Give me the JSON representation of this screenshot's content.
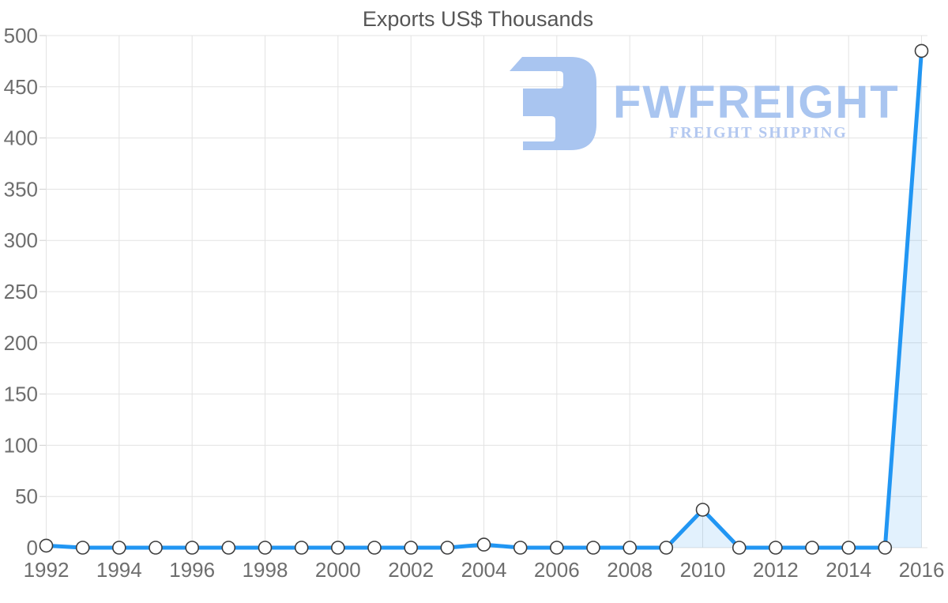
{
  "chart_data": {
    "type": "area",
    "title": "Exports US$ Thousands",
    "series_name": "Exports US$ Thousands",
    "x": [
      1992,
      1993,
      1994,
      1995,
      1996,
      1997,
      1998,
      1999,
      2000,
      2001,
      2002,
      2003,
      2004,
      2005,
      2006,
      2007,
      2008,
      2009,
      2010,
      2011,
      2012,
      2013,
      2014,
      2015,
      2016
    ],
    "values": [
      2,
      0,
      0,
      0,
      0,
      0,
      0,
      0,
      0,
      0,
      0,
      0,
      3,
      0,
      0,
      0,
      0,
      0,
      37,
      0,
      0,
      0,
      0,
      0,
      485
    ],
    "xticks": [
      1992,
      1994,
      1996,
      1998,
      2000,
      2002,
      2004,
      2006,
      2008,
      2010,
      2012,
      2014,
      2016
    ],
    "yticks": [
      0,
      50,
      100,
      150,
      200,
      250,
      300,
      350,
      400,
      450,
      500
    ],
    "xlim": [
      1992,
      2016
    ],
    "ylim": [
      0,
      500
    ],
    "xlabel": "",
    "ylabel": "",
    "grid": true,
    "legend": false,
    "marker": "circle"
  },
  "watermark": {
    "name": "FWFREIGHT",
    "tagline": "FREIGHT SHIPPING",
    "logo_icon": "fwfreight-mark"
  },
  "colors": {
    "line": "#2196f3",
    "area_fill": "#2196f3",
    "area_opacity": "0.13",
    "marker_fill": "#ffffff",
    "marker_stroke": "#3d3d3d",
    "grid": "#e3e3e3",
    "tick": "#cfcfcf",
    "axis_label": "#6e6e6e",
    "title": "#565656",
    "watermark_mark": "#a9c5f0",
    "watermark_text": "#a9c5f0",
    "watermark_tagline": "#b3c8f0",
    "background": "#ffffff"
  }
}
